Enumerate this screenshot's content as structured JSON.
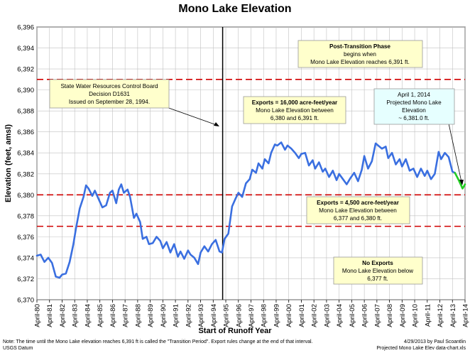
{
  "chart_data": {
    "type": "line",
    "title": "Mono Lake Elevation",
    "xlabel": "Start of Runoff Year",
    "ylabel": "Elevation (feet, amsl)",
    "ylim": [
      6370,
      6396
    ],
    "yticks": [
      "6,370",
      "6,372",
      "6,374",
      "6,376",
      "6,378",
      "6,380",
      "6,382",
      "6,384",
      "6,386",
      "6,388",
      "6,390",
      "6,392",
      "6,394",
      "6,396"
    ],
    "xlim": [
      1980,
      2014
    ],
    "xticks": [
      "April-80",
      "April-81",
      "April-82",
      "April-83",
      "April-84",
      "April-85",
      "April-86",
      "April-87",
      "April-88",
      "April-89",
      "April-90",
      "April-91",
      "April-92",
      "April-93",
      "April-94",
      "April-95",
      "April-96",
      "April-97",
      "April-98",
      "April-99",
      "April-00",
      "April-01",
      "April-02",
      "April-03",
      "April-04",
      "April-05",
      "April-06",
      "April-07",
      "April-08",
      "April-09",
      "April-10",
      "April-11",
      "April-12",
      "April-13",
      "April-14"
    ],
    "grid": true,
    "series": [
      {
        "name": "",
        "color": "#3a6fe0",
        "x": [
          1980,
          1980.3,
          1980.6,
          1980.9,
          1981.2,
          1981.5,
          1981.8,
          1982.0,
          1982.3,
          1982.6,
          1982.9,
          1983.1,
          1983.4,
          1983.7,
          1983.9,
          1984.1,
          1984.4,
          1984.6,
          1984.9,
          1985.2,
          1985.5,
          1985.8,
          1986.0,
          1986.3,
          1986.5,
          1986.7,
          1986.9,
          1987.2,
          1987.4,
          1987.7,
          1987.9,
          1988.2,
          1988.4,
          1988.7,
          1988.9,
          1989.2,
          1989.5,
          1989.8,
          1990.0,
          1990.3,
          1990.6,
          1990.9,
          1991.2,
          1991.4,
          1991.7,
          1992.0,
          1992.2,
          1992.5,
          1992.8,
          1993.0,
          1993.3,
          1993.6,
          1993.9,
          1994.2,
          1994.5,
          1994.7,
          1994.9,
          1995.2,
          1995.5,
          1995.8,
          1996.0,
          1996.3,
          1996.6,
          1996.9,
          1997.1,
          1997.4,
          1997.6,
          1997.9,
          1998.1,
          1998.4,
          1998.6,
          1998.9,
          1999.1,
          1999.4,
          1999.7,
          1999.9,
          2000.2,
          2000.5,
          2000.8,
          2001.0,
          2001.3,
          2001.6,
          2001.9,
          2002.1,
          2002.4,
          2002.7,
          2002.9,
          2003.2,
          2003.5,
          2003.8,
          2004.0,
          2004.3,
          2004.6,
          2004.9,
          2005.2,
          2005.5,
          2005.8,
          2006.0,
          2006.3,
          2006.6,
          2006.9,
          2007.1,
          2007.4,
          2007.7,
          2007.9,
          2008.2,
          2008.5,
          2008.8,
          2009.0,
          2009.3,
          2009.6,
          2009.9,
          2010.2,
          2010.5,
          2010.8,
          2011.0,
          2011.3,
          2011.6,
          2011.9,
          2012.1,
          2012.4,
          2012.7,
          2013.0,
          2013.2
        ],
        "y": [
          6374.2,
          6374.3,
          6373.6,
          6374.0,
          6373.5,
          6372.2,
          6372.1,
          6372.4,
          6372.5,
          6373.6,
          6375.3,
          6376.8,
          6378.7,
          6379.8,
          6380.9,
          6380.6,
          6379.9,
          6380.4,
          6379.6,
          6378.8,
          6379.0,
          6380.2,
          6380.4,
          6379.2,
          6380.5,
          6381.0,
          6380.2,
          6380.5,
          6379.8,
          6377.8,
          6378.2,
          6377.4,
          6375.8,
          6376.0,
          6375.3,
          6375.4,
          6376.0,
          6375.6,
          6374.9,
          6375.5,
          6374.5,
          6375.3,
          6374.1,
          6374.6,
          6373.9,
          6374.7,
          6374.3,
          6374.0,
          6373.4,
          6374.5,
          6375.1,
          6374.6,
          6375.3,
          6375.7,
          6374.6,
          6374.5,
          6375.8,
          6376.3,
          6378.9,
          6379.7,
          6380.2,
          6379.8,
          6381.1,
          6381.5,
          6382.4,
          6382.1,
          6383.0,
          6382.5,
          6383.4,
          6383.0,
          6384.0,
          6384.8,
          6384.7,
          6385.0,
          6384.3,
          6384.7,
          6384.4,
          6384.0,
          6383.5,
          6383.9,
          6384.0,
          6382.8,
          6383.3,
          6382.5,
          6383.1,
          6382.2,
          6382.5,
          6381.7,
          6382.3,
          6381.4,
          6382.0,
          6381.5,
          6381.0,
          6381.6,
          6382.1,
          6381.3,
          6382.4,
          6383.7,
          6382.5,
          6383.2,
          6384.9,
          6384.7,
          6384.4,
          6384.6,
          6383.5,
          6384.0,
          6382.9,
          6383.4,
          6382.7,
          6383.4,
          6382.3,
          6382.5,
          6381.7,
          6382.5,
          6381.8,
          6382.3,
          6381.5,
          6382.0,
          6384.1,
          6383.4,
          6384.0,
          6383.6,
          6382.2,
          6382.1
        ]
      },
      {
        "name": "",
        "color": "#22cc22",
        "x": [
          2013.2,
          2013.5,
          2013.8,
          2014.0
        ],
        "y": [
          6382.1,
          6381.4,
          6380.6,
          6381.0
        ]
      }
    ],
    "reference_lines": [
      {
        "y": 6391,
        "color": "#d00000",
        "style": "dashed"
      },
      {
        "y": 6380,
        "color": "#d00000",
        "style": "dashed"
      },
      {
        "y": 6377,
        "color": "#d00000",
        "style": "dashed"
      }
    ],
    "vertical_lines": [
      {
        "x": 1994.75,
        "color": "#000000"
      }
    ],
    "annotations": {
      "decision": [
        "State Water Resources Control Board",
        "Decision D1631",
        "Issued on September 28, 1994."
      ],
      "post_transition": [
        "Post-Transition Phase",
        "begins when",
        "Mono Lake Elevation reaches 6,391 ft."
      ],
      "exports_16000": [
        "Exports = 16,000 acre-feet/year",
        "Mono Lake Elevation between",
        "6,380 and 6,391 ft."
      ],
      "exports_4500": [
        "Exports = 4,500 acre-feet/year",
        "Mono Lake Elevation between",
        "6,377 and 6,380 ft."
      ],
      "no_exports": [
        "No Exports",
        "Mono Lake Elevation below",
        "6,377 ft."
      ],
      "projected": [
        "April 1, 2014",
        "Projected Mono Lake",
        "Elevation",
        "~ 6,381.0 ft."
      ]
    },
    "notes": {
      "left_1": "Note: The time until the Mono Lake elevation reaches 6,391 ft is called the \"Transition Period\".  Export rules change at the end of that interval.",
      "left_2": "USGS Datum",
      "right_1": "4/29/2013 by Paul Scoantlin",
      "right_2": "Projected Mono Lake Elev data-chart.xls"
    }
  }
}
